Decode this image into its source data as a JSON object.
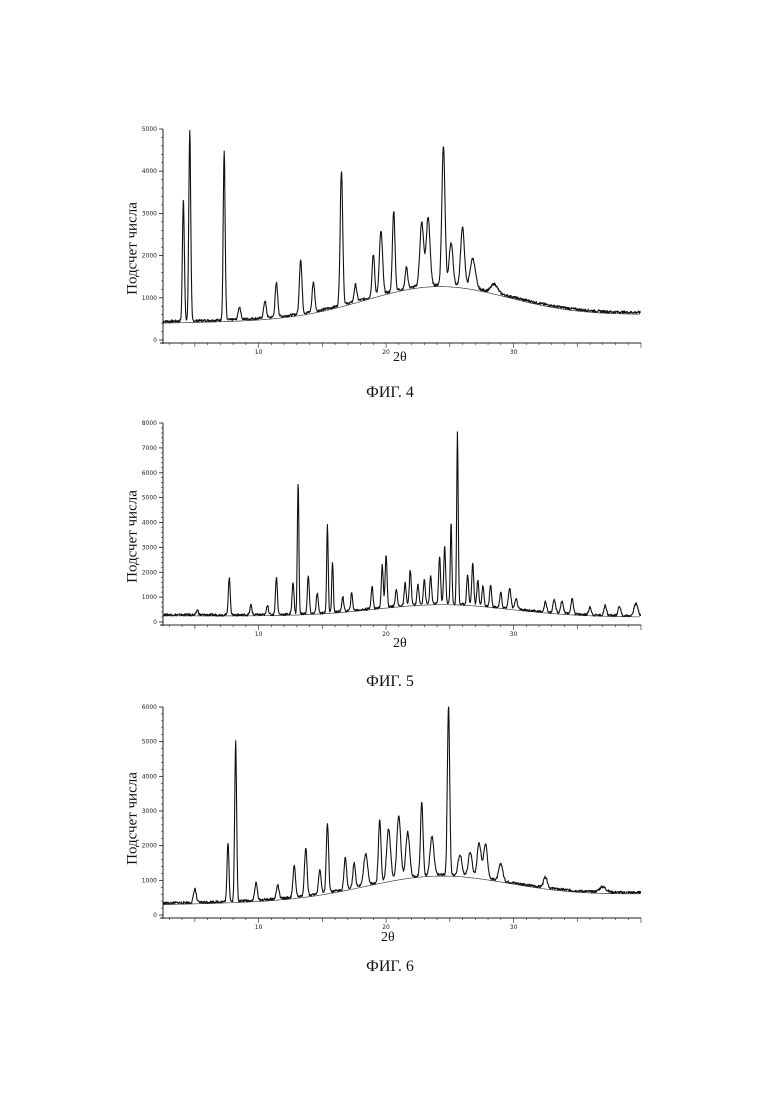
{
  "chart_data": [
    {
      "type": "line",
      "ylabel": "Подсчет числа",
      "xlabel": "2θ",
      "caption": "ФИГ. 4",
      "xlim": [
        2.5,
        40
      ],
      "ylim": [
        0,
        5000
      ],
      "xticks": [
        10,
        20,
        30
      ],
      "yticks": [
        0,
        1000,
        2000,
        3000,
        4000,
        5000
      ],
      "baseline": {
        "start": 400,
        "peak": 1250,
        "peak_x": 24,
        "width": 8,
        "end": 600
      },
      "peaks": [
        [
          4.1,
          2900,
          0.15
        ],
        [
          4.6,
          4500,
          0.15
        ],
        [
          7.3,
          4000,
          0.15
        ],
        [
          8.5,
          300,
          0.2
        ],
        [
          10.5,
          400,
          0.2
        ],
        [
          11.4,
          800,
          0.2
        ],
        [
          13.3,
          1300,
          0.2
        ],
        [
          14.3,
          700,
          0.2
        ],
        [
          16.5,
          3200,
          0.2
        ],
        [
          17.6,
          400,
          0.2
        ],
        [
          19.0,
          1000,
          0.2
        ],
        [
          19.6,
          1500,
          0.25
        ],
        [
          20.6,
          1900,
          0.2
        ],
        [
          21.6,
          500,
          0.2
        ],
        [
          22.8,
          1500,
          0.3
        ],
        [
          23.3,
          1600,
          0.3
        ],
        [
          24.5,
          3300,
          0.25
        ],
        [
          25.1,
          1000,
          0.3
        ],
        [
          26.0,
          1400,
          0.3
        ],
        [
          26.8,
          700,
          0.4
        ],
        [
          28.5,
          200,
          0.5
        ]
      ],
      "note": "curve approximated from peaks read off the axes"
    },
    {
      "type": "line",
      "ylabel": "Подсчет числа",
      "xlabel": "2θ",
      "caption": "ФИГ. 5",
      "xlim": [
        2.5,
        40
      ],
      "ylim": [
        0,
        8000
      ],
      "xticks": [
        10,
        20,
        30
      ],
      "yticks": [
        0,
        1000,
        2000,
        3000,
        4000,
        5000,
        6000,
        7000,
        8000
      ],
      "baseline": {
        "start": 250,
        "peak": 700,
        "peak_x": 24.5,
        "width": 7.5,
        "end": 200
      },
      "peaks": [
        [
          5.2,
          200,
          0.15
        ],
        [
          7.7,
          1500,
          0.15
        ],
        [
          9.4,
          400,
          0.15
        ],
        [
          10.7,
          400,
          0.15
        ],
        [
          11.4,
          1500,
          0.15
        ],
        [
          12.7,
          1300,
          0.15
        ],
        [
          13.1,
          5300,
          0.12
        ],
        [
          13.9,
          1500,
          0.15
        ],
        [
          14.6,
          800,
          0.15
        ],
        [
          15.4,
          3500,
          0.12
        ],
        [
          15.8,
          2000,
          0.12
        ],
        [
          16.6,
          600,
          0.15
        ],
        [
          17.3,
          700,
          0.15
        ],
        [
          18.9,
          900,
          0.15
        ],
        [
          19.7,
          1700,
          0.15
        ],
        [
          20.0,
          2100,
          0.15
        ],
        [
          20.8,
          700,
          0.15
        ],
        [
          21.5,
          900,
          0.15
        ],
        [
          21.9,
          1400,
          0.15
        ],
        [
          22.5,
          800,
          0.15
        ],
        [
          23.0,
          1000,
          0.15
        ],
        [
          23.5,
          1100,
          0.15
        ],
        [
          24.2,
          1900,
          0.15
        ],
        [
          24.6,
          2300,
          0.15
        ],
        [
          25.1,
          3300,
          0.12
        ],
        [
          25.6,
          6900,
          0.12
        ],
        [
          26.4,
          1200,
          0.15
        ],
        [
          26.8,
          1700,
          0.15
        ],
        [
          27.2,
          1000,
          0.15
        ],
        [
          27.6,
          800,
          0.15
        ],
        [
          28.2,
          900,
          0.15
        ],
        [
          29.0,
          600,
          0.15
        ],
        [
          29.7,
          800,
          0.2
        ],
        [
          30.2,
          400,
          0.2
        ],
        [
          32.5,
          400,
          0.2
        ],
        [
          33.2,
          500,
          0.2
        ],
        [
          33.8,
          500,
          0.2
        ],
        [
          34.6,
          600,
          0.2
        ],
        [
          36.0,
          300,
          0.2
        ],
        [
          37.2,
          400,
          0.2
        ],
        [
          38.3,
          400,
          0.2
        ],
        [
          39.6,
          500,
          0.3
        ]
      ],
      "note": "curve approximated from peaks read off the axes"
    },
    {
      "type": "line",
      "ylabel": "Подсчет числа",
      "xlabel": "2θ",
      "caption": "ФИГ. 6",
      "xlim": [
        2.5,
        40
      ],
      "ylim": [
        0,
        6000
      ],
      "xticks": [
        10,
        20,
        30
      ],
      "yticks": [
        0,
        1000,
        2000,
        3000,
        4000,
        5000,
        6000
      ],
      "baseline": {
        "start": 300,
        "peak": 1100,
        "peak_x": 24,
        "width": 8,
        "end": 600
      },
      "peaks": [
        [
          5.0,
          400,
          0.2
        ],
        [
          7.6,
          1700,
          0.15
        ],
        [
          8.2,
          4600,
          0.15
        ],
        [
          9.8,
          500,
          0.2
        ],
        [
          11.5,
          400,
          0.2
        ],
        [
          12.8,
          900,
          0.2
        ],
        [
          13.7,
          1400,
          0.2
        ],
        [
          14.8,
          700,
          0.2
        ],
        [
          15.4,
          2000,
          0.18
        ],
        [
          16.8,
          900,
          0.2
        ],
        [
          17.5,
          700,
          0.2
        ],
        [
          18.4,
          900,
          0.3
        ],
        [
          19.5,
          1800,
          0.2
        ],
        [
          20.2,
          1500,
          0.3
        ],
        [
          21.0,
          1800,
          0.3
        ],
        [
          21.7,
          1300,
          0.3
        ],
        [
          22.8,
          2100,
          0.2
        ],
        [
          23.6,
          1100,
          0.3
        ],
        [
          24.9,
          4900,
          0.18
        ],
        [
          25.8,
          600,
          0.3
        ],
        [
          26.6,
          700,
          0.3
        ],
        [
          27.3,
          1000,
          0.3
        ],
        [
          27.8,
          1000,
          0.3
        ],
        [
          29.0,
          500,
          0.3
        ],
        [
          32.5,
          300,
          0.3
        ],
        [
          37.0,
          150,
          0.5
        ]
      ],
      "note": "curve approximated from peaks read off the axes"
    }
  ]
}
